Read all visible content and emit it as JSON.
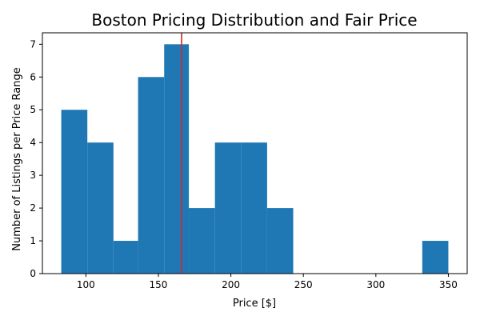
{
  "chart_data": {
    "type": "bar",
    "title": "Boston Pricing Distribution and Fair Price",
    "xlabel": "Price [$]",
    "ylabel": "Number of Listings per Price Range",
    "bins": [
      {
        "start": 83,
        "end": 101,
        "count": 5
      },
      {
        "start": 101,
        "end": 119,
        "count": 4
      },
      {
        "start": 119,
        "end": 136,
        "count": 1
      },
      {
        "start": 136,
        "end": 154,
        "count": 6
      },
      {
        "start": 154,
        "end": 171,
        "count": 7
      },
      {
        "start": 171,
        "end": 189,
        "count": 2
      },
      {
        "start": 189,
        "end": 207,
        "count": 4
      },
      {
        "start": 207,
        "end": 225,
        "count": 4
      },
      {
        "start": 225,
        "end": 243,
        "count": 2
      },
      {
        "start": 332,
        "end": 350,
        "count": 1
      }
    ],
    "fair_price": 166,
    "xlim": [
      70,
      363
    ],
    "ylim": [
      0,
      7.35
    ],
    "xticks": [
      100,
      150,
      200,
      250,
      300,
      350
    ],
    "yticks": [
      0,
      1,
      2,
      3,
      4,
      5,
      6,
      7
    ],
    "bar_color": "#1f77b4",
    "line_color": "#d62728",
    "grid": false,
    "legend": "none"
  }
}
